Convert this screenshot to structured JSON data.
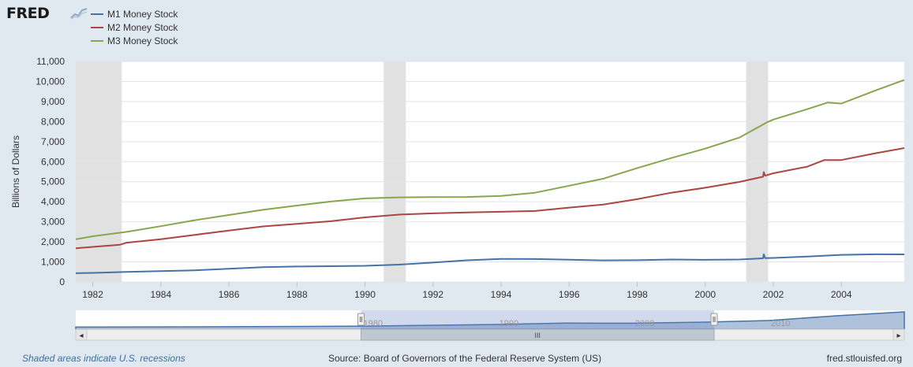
{
  "header": {
    "logo_text": "FRED",
    "logo_icon": "chart-line-icon"
  },
  "chart_data": {
    "type": "line",
    "title": "",
    "xlabel": "",
    "ylabel": "Billions of Dollars",
    "xlim": [
      1981.5,
      2005.85
    ],
    "ylim": [
      0,
      11000
    ],
    "yticks": [
      0,
      1000,
      2000,
      3000,
      4000,
      5000,
      6000,
      7000,
      8000,
      9000,
      10000,
      11000
    ],
    "ytick_labels": [
      "0",
      "1,000",
      "2,000",
      "3,000",
      "4,000",
      "5,000",
      "6,000",
      "7,000",
      "8,000",
      "9,000",
      "10,000",
      "11,000"
    ],
    "xticks": [
      1982,
      1984,
      1986,
      1988,
      1990,
      1992,
      1994,
      1996,
      1998,
      2000,
      2002,
      2004
    ],
    "xtick_labels": [
      "1982",
      "1984",
      "1986",
      "1988",
      "1990",
      "1992",
      "1994",
      "1996",
      "1998",
      "2000",
      "2002",
      "2004"
    ],
    "grid": true,
    "legend_position": "top-left",
    "recessions": [
      [
        1981.5,
        1982.85
      ],
      [
        1990.55,
        1991.2
      ],
      [
        2001.2,
        2001.85
      ]
    ],
    "series": [
      {
        "name": "M1 Money Stock",
        "color": "#4572a7",
        "x": [
          1981.5,
          1982,
          1983,
          1984,
          1985,
          1986,
          1987,
          1988,
          1989,
          1990,
          1991,
          1992,
          1993,
          1994,
          1995,
          1996,
          1997,
          1998,
          1999,
          2000,
          2001,
          2001.7,
          2001.72,
          2001.76,
          2002,
          2003,
          2004,
          2005,
          2005.85
        ],
        "y": [
          435,
          450,
          500,
          540,
          580,
          660,
          740,
          770,
          785,
          805,
          865,
          965,
          1080,
          1150,
          1145,
          1110,
          1075,
          1085,
          1120,
          1105,
          1120,
          1180,
          1380,
          1185,
          1200,
          1270,
          1350,
          1380,
          1375
        ]
      },
      {
        "name": "M2 Money Stock",
        "color": "#aa4643",
        "x": [
          1981.5,
          1982,
          1982.8,
          1983,
          1984,
          1985,
          1986,
          1987,
          1988,
          1989,
          1990,
          1991,
          1992,
          1993,
          1994,
          1995,
          1996,
          1997,
          1998,
          1999,
          2000,
          2001,
          2001.7,
          2001.72,
          2001.76,
          2002,
          2003,
          2003.5,
          2004,
          2005,
          2005.85
        ],
        "y": [
          1680,
          1750,
          1860,
          1960,
          2130,
          2350,
          2560,
          2770,
          2900,
          3030,
          3220,
          3360,
          3420,
          3470,
          3500,
          3540,
          3710,
          3860,
          4130,
          4450,
          4700,
          4990,
          5250,
          5480,
          5300,
          5420,
          5750,
          6080,
          6080,
          6420,
          6680
        ]
      },
      {
        "name": "M3 Money Stock",
        "color": "#89a54e",
        "x": [
          1981.5,
          1982,
          1983,
          1984,
          1985,
          1986,
          1987,
          1988,
          1989,
          1990,
          1991,
          1992,
          1993,
          1994,
          1995,
          1996,
          1997,
          1998,
          1999,
          2000,
          2001,
          2001.8,
          2002,
          2003,
          2003.6,
          2004,
          2005,
          2005.85
        ],
        "y": [
          2130,
          2280,
          2500,
          2780,
          3080,
          3340,
          3600,
          3810,
          4010,
          4170,
          4220,
          4230,
          4240,
          4290,
          4450,
          4800,
          5150,
          5680,
          6180,
          6650,
          7200,
          7950,
          8100,
          8620,
          8950,
          8900,
          9550,
          10080
        ]
      }
    ]
  },
  "navigator": {
    "tick_labels": [
      "1980",
      "1990",
      "2000",
      "2010"
    ],
    "selected_range": [
      1980,
      2006
    ],
    "full_range": [
      1959,
      2020
    ],
    "scroll_label": "III",
    "left_arrow": "◂",
    "right_arrow": "▸"
  },
  "footer": {
    "recession_note": "Shaded areas indicate U.S. recessions",
    "source": "Source: Board of Governors of the Federal Reserve System (US)",
    "site": "fred.stlouisfed.org"
  }
}
